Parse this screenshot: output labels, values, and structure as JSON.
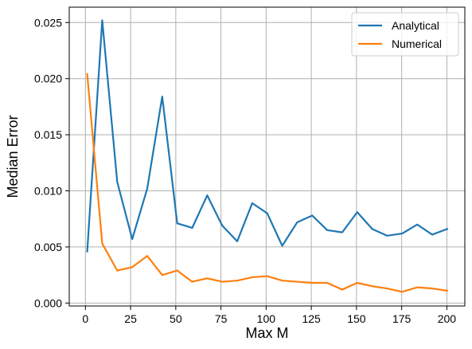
{
  "chart_data": {
    "type": "line",
    "title": "",
    "xlabel": "Max M",
    "ylabel": "Median Error",
    "xlim": [
      -8.95,
      209.95
    ],
    "ylim": [
      -0.00026,
      0.02637
    ],
    "x_ticks": [
      0,
      25,
      50,
      75,
      100,
      125,
      150,
      175,
      200
    ],
    "y_ticks": [
      0.0,
      0.005,
      0.01,
      0.015,
      0.02,
      0.025
    ],
    "y_tick_labels": [
      "0.000",
      "0.005",
      "0.010",
      "0.015",
      "0.020",
      "0.025"
    ],
    "grid": true,
    "legend_position": "top-right",
    "x": [
      1,
      9.3,
      17.6,
      25.9,
      34.2,
      42.5,
      50.8,
      59.1,
      67.4,
      75.7,
      84.0,
      92.3,
      100.6,
      108.9,
      117.2,
      125.5,
      133.8,
      142.1,
      150.4,
      158.7,
      167.0,
      175.3,
      183.6,
      191.9,
      200.2
    ],
    "series": [
      {
        "name": "Analytical",
        "color": "#1f77b4",
        "values": [
          0.0046,
          0.0252,
          0.0108,
          0.0057,
          0.0102,
          0.0184,
          0.0071,
          0.0067,
          0.0096,
          0.0069,
          0.0055,
          0.0089,
          0.008,
          0.0051,
          0.0072,
          0.0078,
          0.0065,
          0.0063,
          0.0081,
          0.0066,
          0.006,
          0.0062,
          0.007,
          0.0061,
          0.0066
        ]
      },
      {
        "name": "Numerical",
        "color": "#ff7f0e",
        "values": [
          0.0204,
          0.0053,
          0.0029,
          0.0032,
          0.0042,
          0.0025,
          0.0029,
          0.0019,
          0.0022,
          0.0019,
          0.002,
          0.0023,
          0.0024,
          0.002,
          0.0019,
          0.0018,
          0.0018,
          0.0012,
          0.0018,
          0.0015,
          0.0013,
          0.001,
          0.0014,
          0.0013,
          0.0011
        ]
      }
    ]
  }
}
